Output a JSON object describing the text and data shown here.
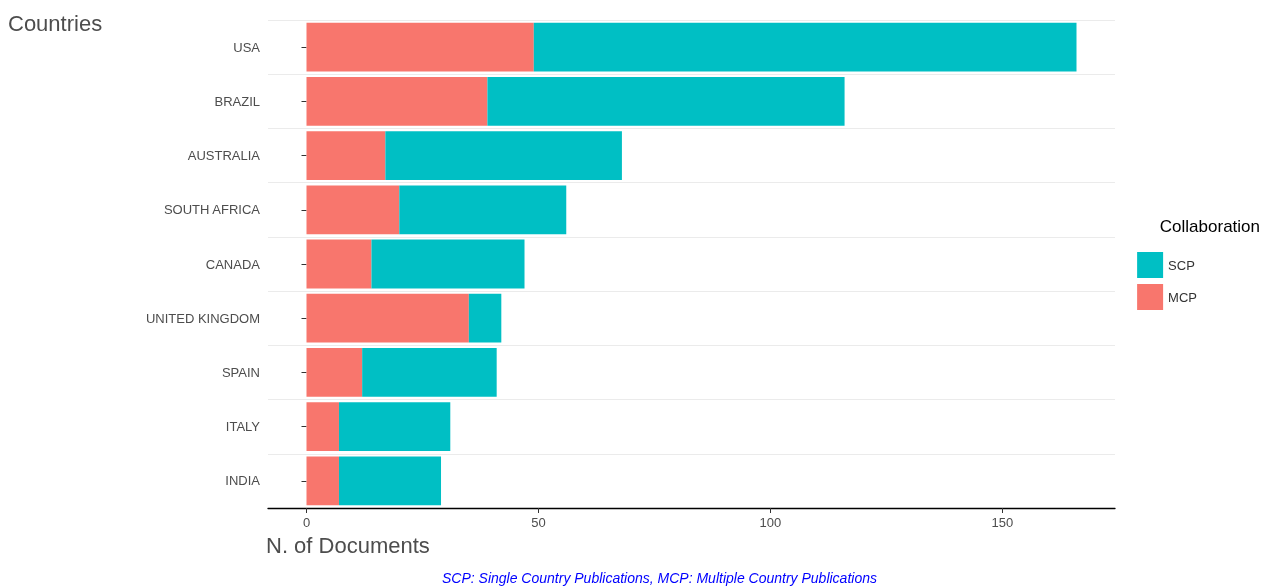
{
  "chart_data": {
    "type": "bar",
    "orientation": "horizontal",
    "stacked": true,
    "ylabel": "Countries",
    "xlabel": "N. of Documents",
    "legend_title": "Collaboration",
    "categories": [
      "USA",
      "BRAZIL",
      "AUSTRALIA",
      "SOUTH AFRICA",
      "CANADA",
      "UNITED KINGDOM",
      "SPAIN",
      "ITALY",
      "INDIA"
    ],
    "series": [
      {
        "name": "MCP",
        "color": "#f8766d",
        "values": [
          49,
          39,
          17,
          20,
          14,
          35,
          12,
          7,
          7
        ]
      },
      {
        "name": "SCP",
        "color": "#00bfc4",
        "values": [
          117,
          77,
          51,
          36,
          33,
          7,
          29,
          24,
          22
        ]
      }
    ],
    "xlim": [
      -8.3,
      174.3
    ],
    "xticks": [
      0,
      50,
      100,
      150
    ],
    "grid": "y",
    "legend": "right",
    "annotations": [
      "SCP: Single Country Publications, MCP: Multiple Country Publications"
    ]
  }
}
